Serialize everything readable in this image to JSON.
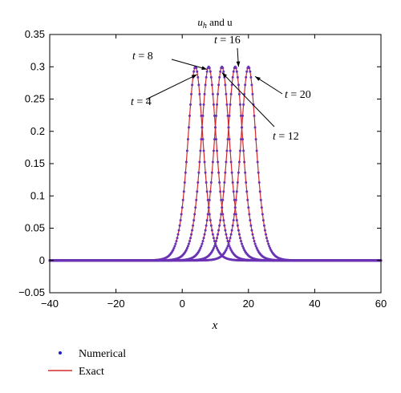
{
  "chart_data": {
    "type": "line",
    "title_main": "u",
    "title_sub": "h",
    "title_rest": " and u",
    "xlabel": "x",
    "ylabel": "",
    "xlim": [
      -40,
      60
    ],
    "ylim": [
      -0.05,
      0.35
    ],
    "xticks": [
      -40,
      -20,
      0,
      20,
      40,
      60
    ],
    "yticks": [
      -0.05,
      0,
      0.05,
      0.1,
      0.15,
      0.2,
      0.25,
      0.3,
      0.35
    ],
    "xtick_labels": [
      "−40",
      "−20",
      "0",
      "20",
      "40",
      "60"
    ],
    "ytick_labels": [
      "−0.05",
      "0",
      "0.05",
      "0.1",
      "0.15",
      "0.2",
      "0.25",
      "0.3",
      "0.35"
    ],
    "grid": false,
    "legend_position": "bottom-left",
    "profile": {
      "amplitude": 0.3,
      "width_factor": 0.3162
    },
    "series": [
      {
        "name": "Numerical",
        "style": "points",
        "color": "#1f1fd0"
      },
      {
        "name": "Exact",
        "style": "line",
        "color": "#d22b2b"
      }
    ],
    "times": [
      4,
      8,
      12,
      16,
      20
    ],
    "peak_centers": [
      4,
      8,
      12,
      16,
      20
    ],
    "annotations": [
      {
        "t": 4,
        "text": "t = 4"
      },
      {
        "t": 8,
        "text": "t = 8"
      },
      {
        "t": 12,
        "text": "t = 12"
      },
      {
        "t": 16,
        "text": "t = 16"
      },
      {
        "t": 20,
        "text": "t = 20"
      }
    ],
    "colors": {
      "numerical": "#1f1fd0",
      "exact": "#d22b2b",
      "overlap": "#6a32b4"
    }
  }
}
